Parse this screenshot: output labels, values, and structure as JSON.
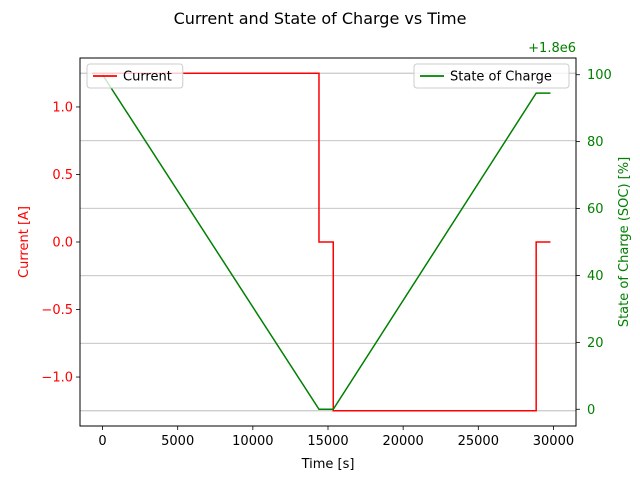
{
  "chart_data": {
    "type": "line",
    "title": "Current and State of Charge vs Time",
    "xlabel": "Time [s]",
    "xlim": [
      -1500,
      31500
    ],
    "xticks": [
      0,
      5000,
      10000,
      15000,
      20000,
      25000,
      30000
    ],
    "xtick_labels": [
      "0",
      "5000",
      "10000",
      "15000",
      "20000",
      "25000",
      "30000"
    ],
    "grid": true,
    "left_axis": {
      "label": "Current [A]",
      "color": "#ff0000",
      "ylim": [
        -1.3625,
        1.3625
      ],
      "ticks": [
        1.0,
        0.5,
        0.0,
        -0.5,
        -1.0
      ],
      "tick_labels": [
        "1.0",
        "0.5",
        "0.0",
        "−0.5",
        "−1.0"
      ],
      "gridlines": [
        1.25,
        0.75,
        0.25,
        -0.25,
        -0.75,
        -1.25
      ]
    },
    "right_axis": {
      "label": "State of Charge (SOC) [%]",
      "color": "#008000",
      "offset_text": "+1.8e6",
      "ylim": [
        -5,
        105
      ],
      "ticks": [
        100,
        80,
        60,
        40,
        20,
        0
      ],
      "tick_labels": [
        "100",
        "80",
        "60",
        "40",
        "20",
        "0"
      ]
    },
    "series": [
      {
        "name": "Current",
        "axis": "left",
        "color": "#ff0000",
        "points": [
          [
            -700,
            1.25
          ],
          [
            14400,
            1.25
          ],
          [
            14400,
            0.0
          ],
          [
            15350,
            0.0
          ],
          [
            15350,
            -1.25
          ],
          [
            28850,
            -1.25
          ],
          [
            28850,
            0.0
          ],
          [
            29800,
            0.0
          ]
        ]
      },
      {
        "name": "State of Charge",
        "axis": "right",
        "color": "#008000",
        "points": [
          [
            0,
            100
          ],
          [
            14400,
            0
          ],
          [
            15350,
            0
          ],
          [
            28850,
            94.5
          ],
          [
            29800,
            94.5
          ]
        ]
      }
    ],
    "legends": [
      {
        "position": "upper-left",
        "entries": [
          "Current"
        ]
      },
      {
        "position": "upper-right",
        "entries": [
          "State of Charge"
        ]
      }
    ]
  }
}
